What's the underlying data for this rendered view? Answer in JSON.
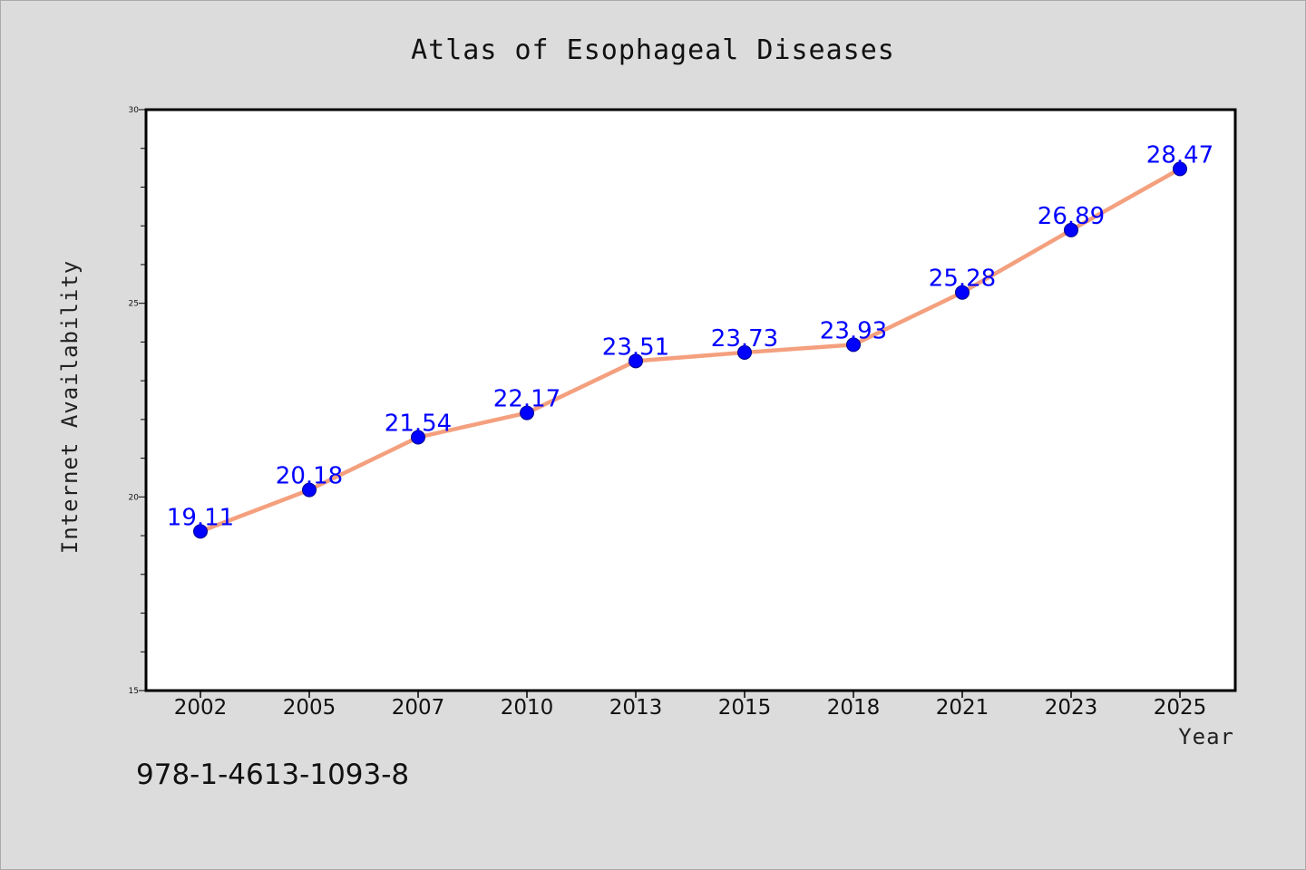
{
  "chart_data": {
    "type": "line",
    "title": "Atlas of Esophageal Diseases",
    "xlabel": "Year",
    "ylabel": "Internet Availability",
    "categories": [
      "2002",
      "2005",
      "2007",
      "2010",
      "2013",
      "2015",
      "2018",
      "2021",
      "2023",
      "2025"
    ],
    "series": [
      {
        "values": [
          19.11,
          20.18,
          21.54,
          22.17,
          23.51,
          23.73,
          23.93,
          25.28,
          26.89,
          28.47
        ],
        "labels": [
          "19.11",
          "20.18",
          "21.54",
          "22.17",
          "23.51",
          "23.73",
          "23.93",
          "25.28",
          "26.89",
          "28.47"
        ],
        "line_color": "#f4a07e",
        "marker_color": "#0000ff"
      }
    ],
    "ylim": [
      15,
      30
    ],
    "y_ticks": [
      "15",
      "20",
      "25",
      "30"
    ],
    "grid": false,
    "legend": "none"
  },
  "footer": {
    "isbn": "978-1-4613-1093-8"
  },
  "colors": {
    "background": "#dcdcdc",
    "plot_background": "#ffffff",
    "label_color": "#0000ff"
  }
}
